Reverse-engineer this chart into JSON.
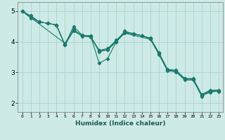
{
  "xlabel": "Humidex (Indice chaleur)",
  "xlim": [
    -0.5,
    23.5
  ],
  "ylim": [
    1.7,
    5.3
  ],
  "yticks": [
    2,
    3,
    4,
    5
  ],
  "xticks": [
    0,
    1,
    2,
    3,
    4,
    5,
    6,
    7,
    8,
    9,
    10,
    11,
    12,
    13,
    14,
    15,
    16,
    17,
    18,
    19,
    20,
    21,
    22,
    23
  ],
  "bg_color": "#ceeae6",
  "grid_color": "#a8d4d0",
  "line_color": "#1a7a6e",
  "line1_x": [
    0,
    1,
    2,
    3,
    4,
    5,
    6,
    7,
    8,
    9,
    10,
    11,
    12,
    13,
    14,
    15,
    16,
    17,
    18,
    19,
    20,
    21,
    22,
    23
  ],
  "line1_y": [
    5.0,
    4.85,
    4.65,
    4.6,
    4.55,
    3.9,
    4.35,
    4.2,
    4.15,
    3.72,
    3.75,
    4.02,
    4.3,
    4.25,
    4.2,
    4.1,
    3.62,
    3.08,
    3.05,
    2.78,
    2.78,
    2.25,
    2.4,
    2.4
  ],
  "line2_x": [
    0,
    1,
    2,
    3,
    4,
    5,
    6,
    7,
    8,
    9,
    10,
    11,
    12,
    13,
    14,
    15,
    16,
    17,
    18,
    19,
    20,
    21,
    22,
    23
  ],
  "line2_y": [
    5.0,
    4.78,
    4.65,
    4.6,
    4.55,
    3.9,
    4.5,
    4.22,
    4.18,
    3.72,
    3.78,
    4.05,
    4.32,
    4.27,
    4.2,
    4.12,
    3.64,
    3.1,
    3.07,
    2.8,
    2.8,
    2.28,
    2.42,
    2.42
  ],
  "line3_x": [
    0,
    2,
    3,
    4,
    5,
    6,
    7,
    8,
    9,
    10,
    11,
    12,
    13,
    14,
    15,
    16,
    17,
    18,
    19,
    20,
    21,
    22,
    23
  ],
  "line3_y": [
    5.0,
    4.65,
    4.6,
    4.55,
    3.9,
    4.4,
    4.2,
    4.2,
    3.3,
    3.45,
    4.0,
    4.35,
    4.25,
    4.2,
    4.1,
    3.62,
    3.08,
    3.05,
    2.8,
    2.78,
    2.25,
    2.35,
    2.4
  ],
  "line4_x": [
    0,
    5,
    6,
    7,
    8,
    9,
    10,
    11,
    12,
    15,
    16,
    17,
    18,
    19,
    20,
    21,
    22,
    23
  ],
  "line4_y": [
    5.0,
    3.95,
    4.38,
    4.18,
    4.18,
    3.68,
    3.73,
    4.0,
    4.28,
    4.08,
    3.58,
    3.05,
    3.02,
    2.75,
    2.75,
    2.22,
    2.38,
    2.38
  ]
}
